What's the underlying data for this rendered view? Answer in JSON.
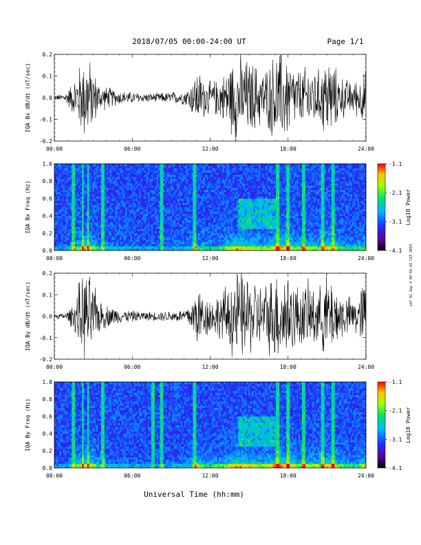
{
  "header": {
    "title": "2018/07/05  00:00-24:00 UT",
    "page": "Page 1/1"
  },
  "side_note": "sdf 01 Sep 4 09:55:41 CST 2019",
  "chart_data": [
    {
      "type": "line",
      "ylabel": "IQA Bx dB/dt (nT/sec)",
      "ylim": [
        -0.2,
        0.2
      ],
      "yticks": [
        "0.2",
        "0.1",
        "0.0",
        "-0.1",
        "-0.2"
      ],
      "xlim": [
        0,
        24
      ],
      "xticks": [
        "00:00",
        "06:00",
        "12:00",
        "18:00",
        "24:00"
      ],
      "color": "#000000",
      "envelope_hours": [
        0,
        0.5,
        1,
        1.5,
        2,
        2.5,
        3,
        3.5,
        4,
        4.5,
        5,
        6,
        7,
        8,
        9,
        10,
        10.5,
        11,
        11.5,
        12,
        12.5,
        13,
        13.5,
        14,
        14.5,
        15,
        15.5,
        16,
        16.5,
        17,
        17.5,
        18,
        18.5,
        19,
        19.5,
        20,
        20.5,
        21,
        21.5,
        22,
        22.5,
        23,
        23.5,
        24
      ],
      "envelope_amplitude": [
        0.012,
        0.015,
        0.03,
        0.08,
        0.15,
        0.2,
        0.12,
        0.06,
        0.05,
        0.04,
        0.03,
        0.025,
        0.02,
        0.02,
        0.025,
        0.03,
        0.06,
        0.12,
        0.09,
        0.07,
        0.08,
        0.1,
        0.15,
        0.2,
        0.18,
        0.16,
        0.15,
        0.12,
        0.14,
        0.2,
        0.2,
        0.18,
        0.13,
        0.12,
        0.14,
        0.13,
        0.12,
        0.2,
        0.14,
        0.1,
        0.08,
        0.07,
        0.09,
        0.12
      ]
    },
    {
      "type": "heatmap",
      "ylabel": "IQA Bx Freq (Hz)",
      "ylim": [
        0.0,
        1.0
      ],
      "yticks": [
        "1.0",
        "0.8",
        "0.6",
        "0.4",
        "0.2",
        "0.0"
      ],
      "xlim": [
        0,
        24
      ],
      "xticks": [
        "00:00",
        "06:00",
        "12:00",
        "18:00",
        "24:00"
      ],
      "colorbar": {
        "label": "Log10 Power",
        "ticks": [
          "-1.1",
          "-2.1",
          "-3.1",
          "-4.1"
        ],
        "range": [
          -4.1,
          -1.1
        ]
      },
      "vertical_stripes_hours": [
        1.5,
        2.2,
        2.6,
        3.7,
        8.3,
        10.8,
        17.2,
        18.0,
        19.2,
        20.7,
        21.5
      ],
      "feature": {
        "description_hours": [
          14.2,
          17.0
        ],
        "freq_hz": [
          0.25,
          0.6
        ]
      }
    },
    {
      "type": "line",
      "ylabel": "IQA By dB/dt (nT/sec)",
      "ylim": [
        -0.2,
        0.2
      ],
      "yticks": [
        "0.2",
        "0.1",
        "0.0",
        "-0.1",
        "-0.2"
      ],
      "xlim": [
        0,
        24
      ],
      "xticks": [
        "00:00",
        "06:00",
        "12:00",
        "18:00",
        "24:00"
      ],
      "color": "#000000",
      "envelope_hours": [
        0,
        0.5,
        1,
        1.5,
        2,
        2.5,
        3,
        3.5,
        4,
        4.5,
        5,
        6,
        7,
        8,
        9,
        10,
        10.5,
        11,
        11.5,
        12,
        12.5,
        13,
        13.5,
        14,
        14.5,
        15,
        15.5,
        16,
        16.5,
        17,
        17.5,
        18,
        18.5,
        19,
        19.5,
        20,
        20.5,
        21,
        21.5,
        22,
        22.5,
        23,
        23.5,
        24
      ],
      "envelope_amplitude": [
        0.01,
        0.012,
        0.02,
        0.06,
        0.16,
        0.2,
        0.14,
        0.07,
        0.05,
        0.04,
        0.03,
        0.025,
        0.02,
        0.02,
        0.025,
        0.03,
        0.06,
        0.14,
        0.1,
        0.08,
        0.09,
        0.11,
        0.16,
        0.2,
        0.19,
        0.17,
        0.16,
        0.13,
        0.16,
        0.2,
        0.2,
        0.2,
        0.15,
        0.13,
        0.15,
        0.14,
        0.13,
        0.2,
        0.15,
        0.11,
        0.09,
        0.08,
        0.1,
        0.2
      ]
    },
    {
      "type": "heatmap",
      "ylabel": "IQA By Freq (Hz)",
      "ylim": [
        0.0,
        1.0
      ],
      "yticks": [
        "1.0",
        "0.8",
        "0.6",
        "0.4",
        "0.2",
        "0.0"
      ],
      "xlim": [
        0,
        24
      ],
      "xticks": [
        "00:00",
        "06:00",
        "12:00",
        "18:00",
        "24:00"
      ],
      "colorbar": {
        "label": "Log10 Power",
        "ticks": [
          "-1.1",
          "-2.1",
          "-3.1",
          "-4.1"
        ],
        "range": [
          -4.1,
          -1.1
        ]
      },
      "vertical_stripes_hours": [
        1.5,
        2.2,
        2.6,
        3.7,
        7.6,
        8.3,
        10.8,
        17.2,
        18.0,
        19.2,
        20.7,
        21.5
      ],
      "feature": {
        "description_hours": [
          14.2,
          17.0
        ],
        "freq_hz": [
          0.25,
          0.6
        ]
      }
    }
  ],
  "xlabel": "Universal Time (hh:mm)"
}
